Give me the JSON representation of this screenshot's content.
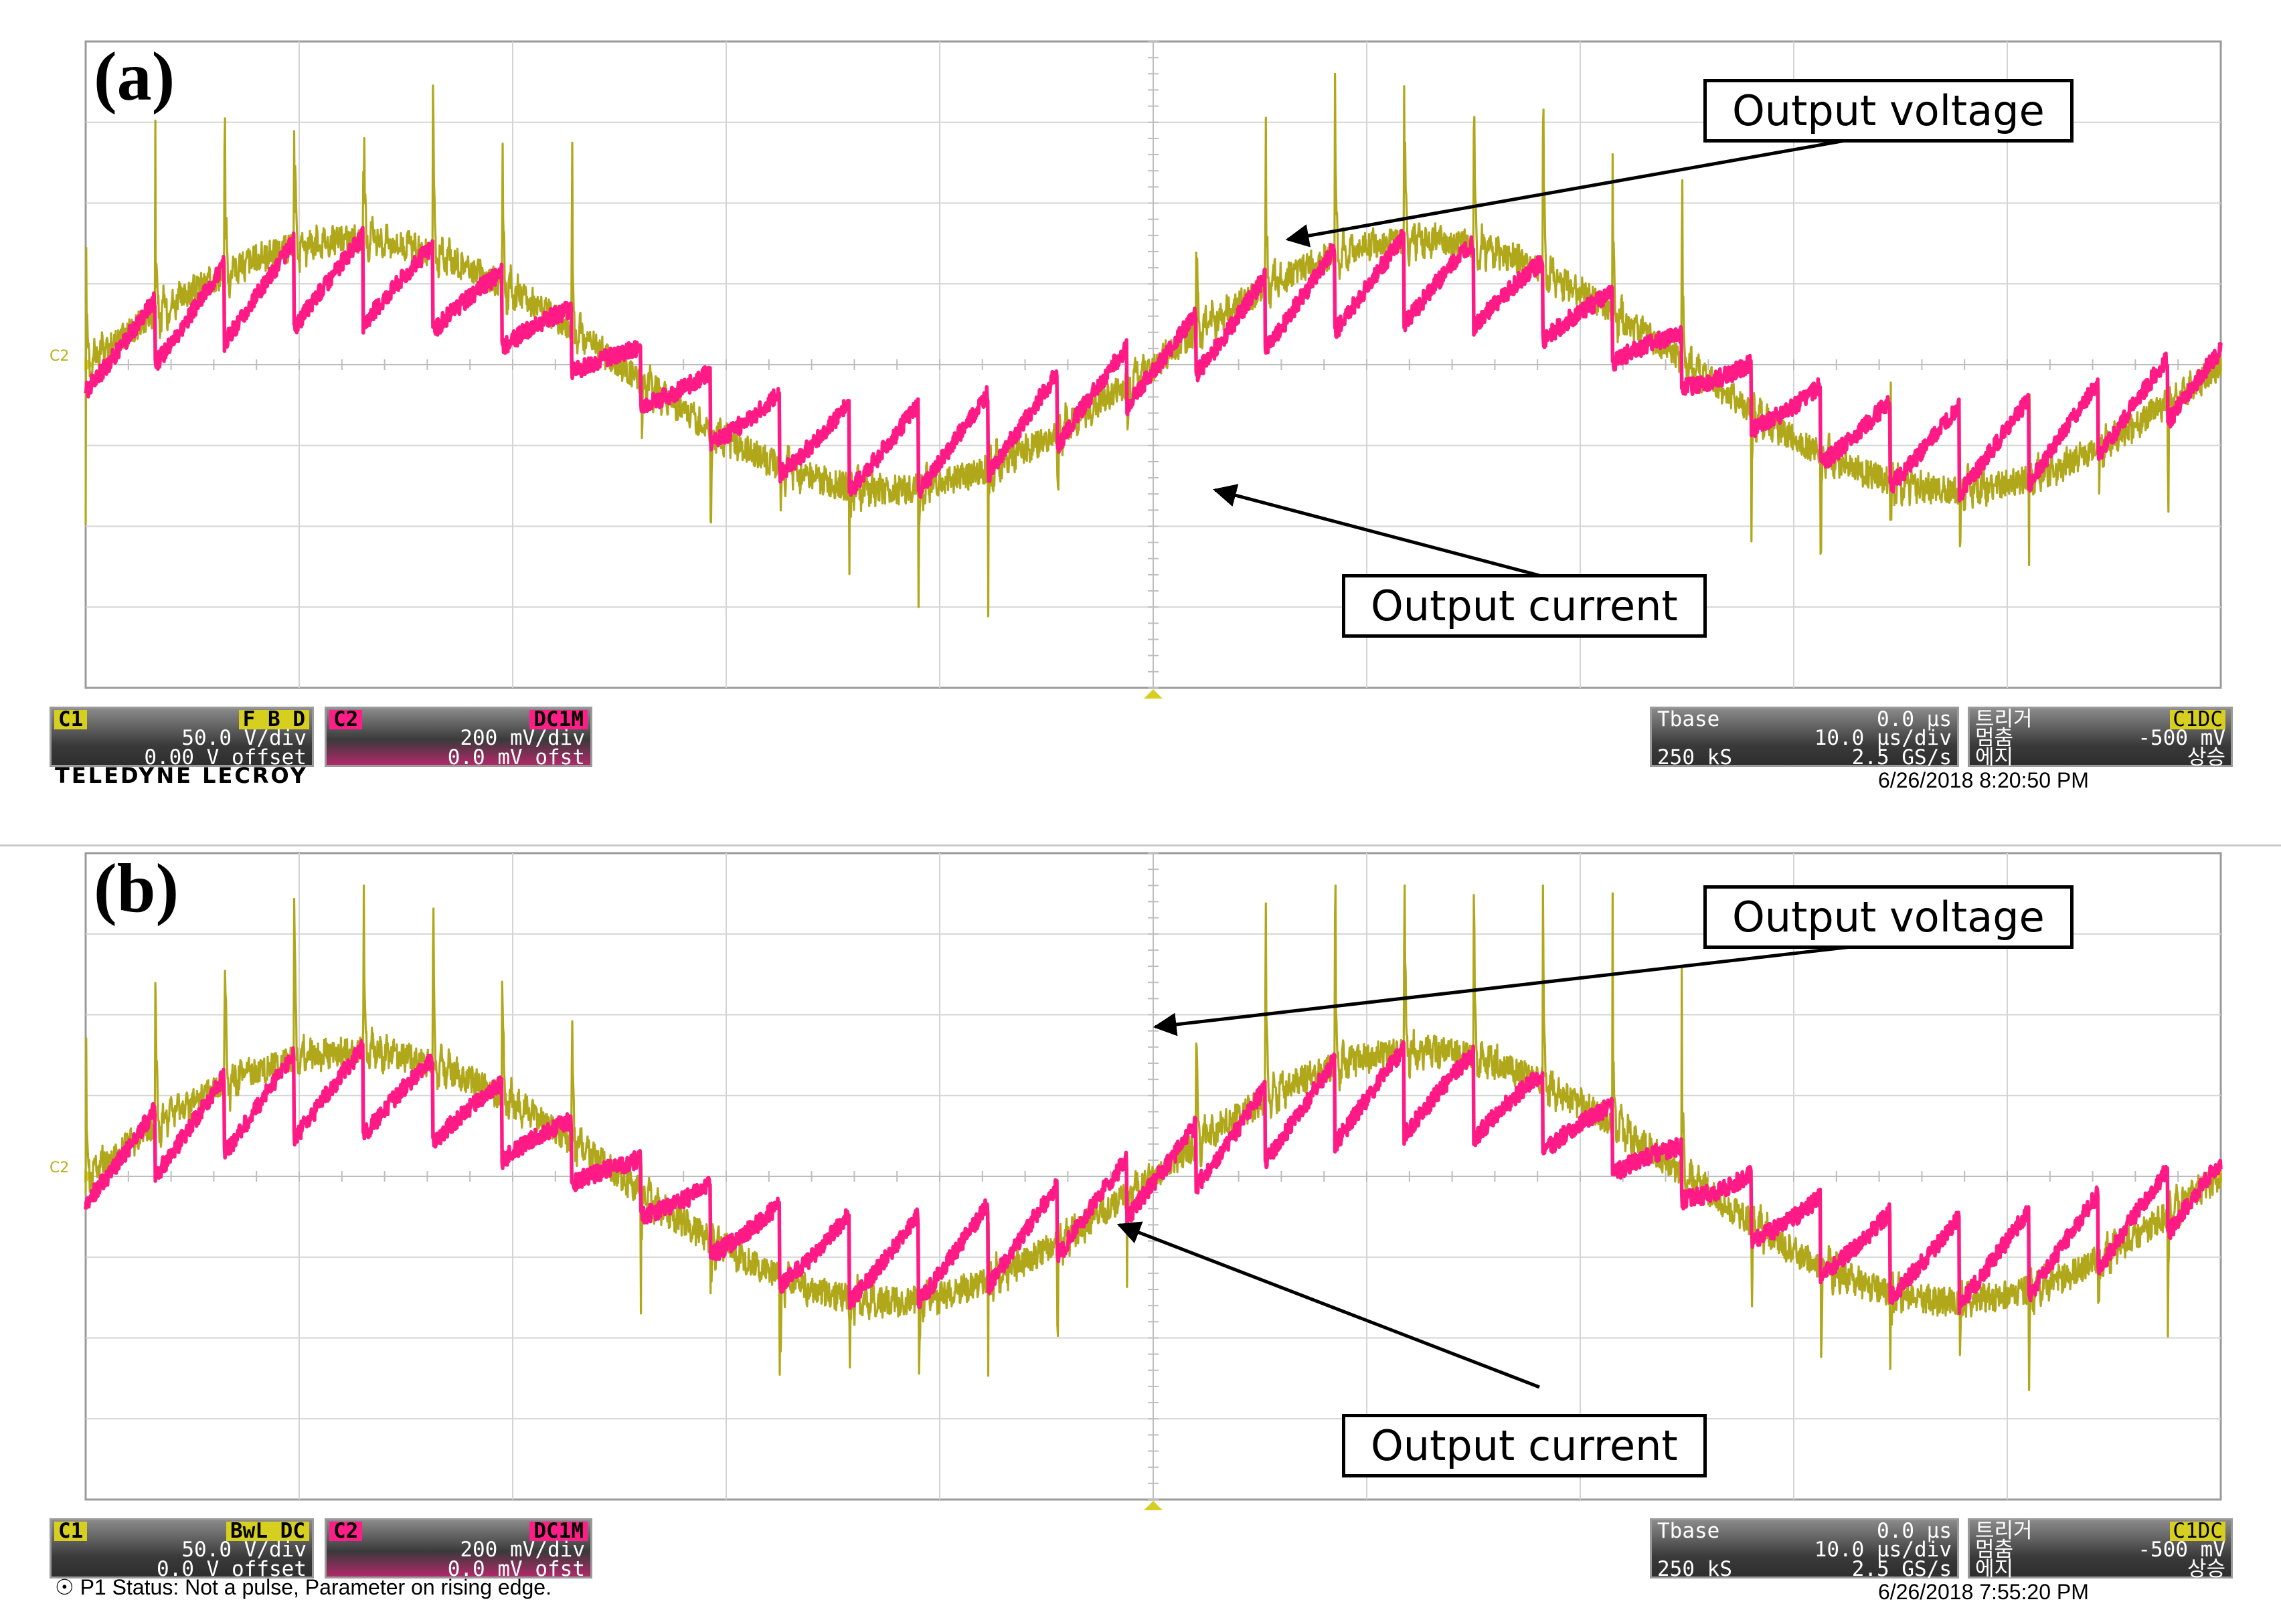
{
  "chart_data": [
    {
      "type": "line",
      "panel_label": "(a)",
      "xlim": [
        -50,
        50
      ],
      "ylim": [
        -4,
        4
      ],
      "grid": true,
      "series": [
        {
          "name": "Output voltage",
          "color": "#b0a81a",
          "trace_type": "voltage_spikes"
        },
        {
          "name": "Output current",
          "color": "#ff1a85",
          "trace_type": "current_sawtooth"
        }
      ],
      "annotations": [
        {
          "text": "Output voltage",
          "arrow_to": {
            "x": 6.3,
            "y": 1.55
          }
        },
        {
          "text": "Output current",
          "arrow_to": {
            "x": 2.9,
            "y": -1.55
          }
        }
      ],
      "ch1": {
        "tag": "C1",
        "flags": "F B D",
        "scale": "50.0 V/div",
        "offset": "0.00 V offset"
      },
      "ch2": {
        "tag": "C2",
        "flags": "DC1M",
        "scale": "200 mV/div",
        "offset": "0.0 mV ofst"
      },
      "timebase": {
        "label": "Tbase",
        "delay": "0.0 µs",
        "scale": "10.0 µs/div",
        "samples": "250 kS",
        "rate": "2.5 GS/s"
      },
      "trigger": {
        "label": "트리거",
        "src": "C1DC",
        "mode": "멈춤",
        "level": "-500 mV",
        "type": "에지",
        "slope": "상승"
      },
      "footer_left": "TELEDYNE LECROY",
      "timestamp": "6/26/2018 8:20:50 PM"
    },
    {
      "type": "line",
      "panel_label": "(b)",
      "xlim": [
        -50,
        50
      ],
      "ylim": [
        -4,
        4
      ],
      "grid": true,
      "series": [
        {
          "name": "Output voltage",
          "color": "#b0a81a",
          "trace_type": "voltage_spikes"
        },
        {
          "name": "Output current",
          "color": "#ff1a85",
          "trace_type": "current_sawtooth"
        }
      ],
      "annotations": [
        {
          "text": "Output voltage",
          "arrow_to": {
            "x": 0.1,
            "y": 1.85
          }
        },
        {
          "text": "Output current",
          "arrow_to": {
            "x": -1.6,
            "y": -0.6
          }
        }
      ],
      "ch1": {
        "tag": "C1",
        "flags": "BwL DC",
        "scale": "50.0 V/div",
        "offset": "0.0 V offset"
      },
      "ch2": {
        "tag": "C2",
        "flags": "DC1M",
        "scale": "200 mV/div",
        "offset": "0.0 mV ofst"
      },
      "timebase": {
        "label": "Tbase",
        "delay": "0.0 µs",
        "scale": "10.0 µs/div",
        "samples": "250 kS",
        "rate": "2.5 GS/s"
      },
      "trigger": {
        "label": "트리거",
        "src": "C1DC",
        "mode": "멈춤",
        "level": "-500 mV",
        "type": "에지",
        "slope": "상승"
      },
      "footer_left": "P1 Status: Not a pulse, Parameter on rising edge.",
      "timestamp": "6/26/2018 7:55:20 PM"
    }
  ]
}
